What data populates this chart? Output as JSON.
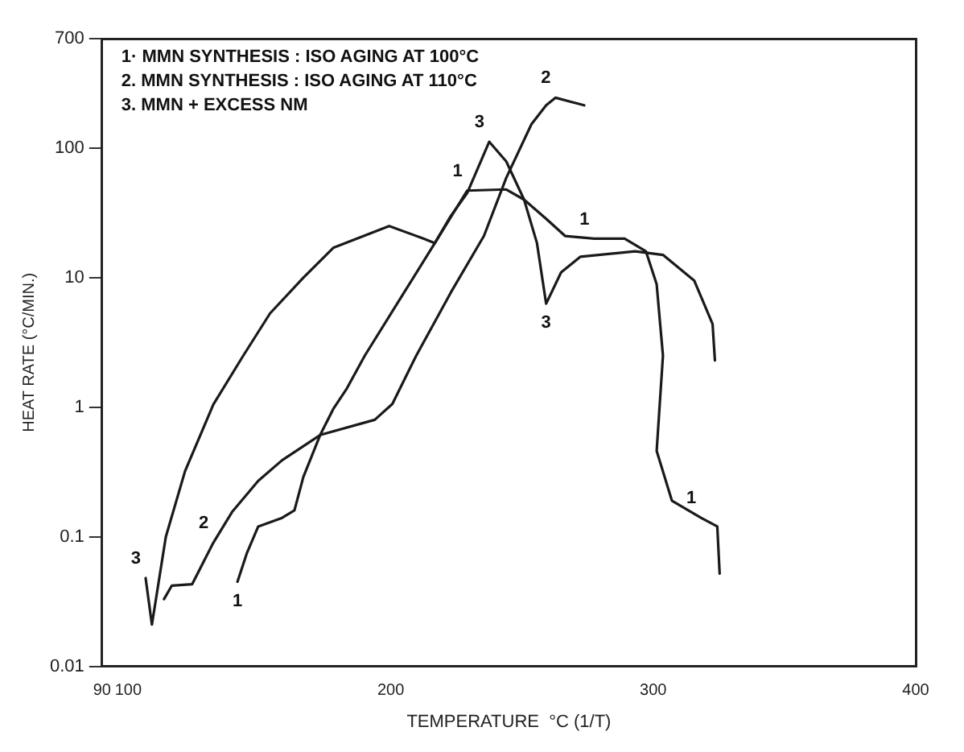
{
  "chart_data": {
    "type": "line",
    "xlabel": "TEMPERATURE  °C (1/T)",
    "ylabel": "HEAT RATE (°C/MIN.)",
    "xlim": [
      90,
      400
    ],
    "xticks": [
      90,
      100,
      200,
      300,
      400
    ],
    "ylim": [
      0.01,
      700
    ],
    "yticks": [
      0.01,
      0.1,
      1,
      10,
      100,
      700
    ],
    "log": "y",
    "grid": false,
    "legend": false,
    "marker": "none",
    "line_style": "solid",
    "series": [
      {
        "color": "#1a1a1a",
        "x": [
          141.6,
          145.1,
          149.5,
          158.6,
          163.3,
          166.7,
          173.1,
          178.1,
          183.3,
          190.1,
          205.1,
          216.8,
          229.1,
          244,
          250.8,
          259.2,
          266.4,
          277.5,
          289.1,
          297.2,
          301.3,
          303.7,
          301.3,
          307.1,
          318.2,
          324.4,
          325.3
        ],
        "values": [
          0.045,
          0.074,
          0.12,
          0.14,
          0.16,
          0.29,
          0.61,
          0.97,
          1.4,
          2.5,
          7.7,
          18.5,
          47,
          48,
          40,
          28.5,
          21,
          20,
          20,
          16,
          8.9,
          2.5,
          0.46,
          0.19,
          0.14,
          0.12,
          0.052
        ]
      },
      {
        "color": "#1a1a1a",
        "x": [
          113.6,
          116.6,
          124.3,
          132.4,
          139.5,
          149.5,
          158.6,
          173.1,
          193.9,
          200.6,
          209.7,
          222.9,
          235.5,
          244,
          253.6,
          259.2,
          262.8,
          267.8,
          273.7
        ],
        "values": [
          0.033,
          0.042,
          0.043,
          0.09,
          0.155,
          0.27,
          0.39,
          0.61,
          0.8,
          1.06,
          2.5,
          7.7,
          21,
          59,
          153,
          214,
          245,
          230,
          214
        ]
      },
      {
        "color": "#1a1a1a",
        "x": [
          106.6,
          109,
          114.3,
          121.6,
          132.4,
          143.8,
          154,
          166.7,
          178.1,
          199.4,
          212.6,
          216.8,
          222.9,
          229.1,
          237.5,
          244,
          250.8,
          255.7,
          259.2,
          264.9,
          272.2,
          293.1,
          303.7,
          315.6,
          322.6,
          323.5
        ],
        "values": [
          0.048,
          0.021,
          0.1,
          0.32,
          1.05,
          2.5,
          5.3,
          10,
          17,
          25,
          20,
          18.5,
          30,
          45,
          112,
          79,
          40,
          18.5,
          6.3,
          11,
          14.5,
          16,
          15,
          9.5,
          4.4,
          2.3
        ]
      }
    ],
    "annotations": [
      "1· MMN SYNTHESIS : ISO AGING AT 100°C",
      "2. MMN SYNTHESIS : ISO AGING AT 110°C",
      "3. MMN + EXCESS NM",
      {
        "text": "3",
        "x": 106.6,
        "y": 0.048
      },
      {
        "text": "2",
        "x": 132.4,
        "y": 0.09
      },
      {
        "text": "1",
        "x": 141.6,
        "y": 0.045
      },
      {
        "text": "3",
        "x": 237.5,
        "y": 112
      },
      {
        "text": "1",
        "x": 229.1,
        "y": 47
      },
      {
        "text": "2",
        "x": 262.8,
        "y": 245
      },
      {
        "text": "1",
        "x": 277.5,
        "y": 20
      },
      {
        "text": "3",
        "x": 259.2,
        "y": 6.3
      },
      {
        "text": "1",
        "x": 318.2,
        "y": 0.14
      }
    ]
  }
}
